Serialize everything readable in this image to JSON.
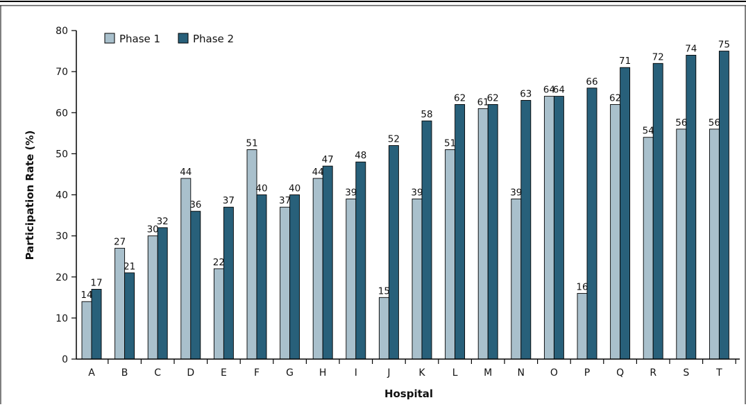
{
  "chart_data": {
    "type": "bar",
    "title": "",
    "xlabel": "Hospital",
    "ylabel": "Participation Rate (%)",
    "ylim": [
      0,
      80
    ],
    "yticks": [
      0,
      10,
      20,
      30,
      40,
      50,
      60,
      70,
      80
    ],
    "grid": false,
    "legend_position": "top-left",
    "categories": [
      "A",
      "B",
      "C",
      "D",
      "E",
      "F",
      "G",
      "H",
      "I",
      "J",
      "K",
      "L",
      "M",
      "N",
      "O",
      "P",
      "Q",
      "R",
      "S",
      "T"
    ],
    "series": [
      {
        "name": "Phase 1",
        "color": "#a9c0cc",
        "values": [
          14,
          27,
          30,
          44,
          22,
          51,
          37,
          44,
          39,
          15,
          39,
          51,
          61,
          39,
          64,
          16,
          62,
          54,
          56,
          56
        ],
        "labels": [
          "14",
          "27",
          "30",
          "44",
          "22",
          "51",
          "37",
          "44",
          "39",
          "15",
          "39",
          "51",
          "61",
          "39",
          "64",
          "16",
          "62",
          "54",
          "56",
          "56"
        ]
      },
      {
        "name": "Phase 2",
        "color": "#28607a",
        "values": [
          17,
          21,
          32,
          36,
          37,
          40,
          40,
          47,
          48,
          52,
          58,
          62,
          62,
          63,
          64,
          66,
          71,
          72,
          74,
          75
        ],
        "labels": [
          "17",
          "21",
          "32",
          "36",
          "37",
          "40",
          "40",
          "47",
          "48",
          "52",
          "58",
          "62",
          "62",
          "63",
          "64",
          "66",
          "71",
          "72",
          "74",
          "75"
        ]
      }
    ]
  }
}
